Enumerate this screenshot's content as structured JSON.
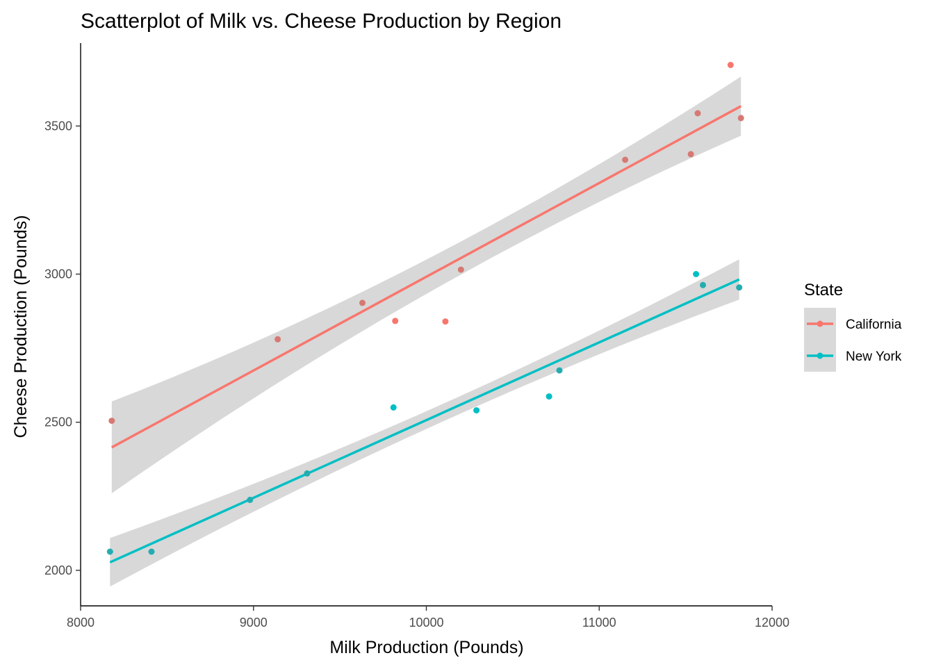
{
  "chart_data": {
    "type": "scatter",
    "title": "Scatterplot of Milk vs. Cheese Production by Region",
    "xlabel": "Milk Production (Pounds)",
    "ylabel": "Cheese Production (Pounds)",
    "xlim": [
      8000,
      12000
    ],
    "ylim": [
      1880,
      3780
    ],
    "x_ticks": [
      8000,
      9000,
      10000,
      11000,
      12000
    ],
    "y_ticks": [
      2000,
      2500,
      3000,
      3500
    ],
    "grid": false,
    "legend": {
      "title": "State",
      "position": "right"
    },
    "smooth": "linear fit with confidence band",
    "band_color": "#bebebe",
    "series": [
      {
        "name": "California",
        "color": "#F8766D",
        "points": [
          {
            "x": 8180,
            "y": 2505
          },
          {
            "x": 9140,
            "y": 2780
          },
          {
            "x": 9630,
            "y": 2903
          },
          {
            "x": 9820,
            "y": 2842
          },
          {
            "x": 10110,
            "y": 2840
          },
          {
            "x": 10200,
            "y": 3015
          },
          {
            "x": 11150,
            "y": 3386
          },
          {
            "x": 11530,
            "y": 3405
          },
          {
            "x": 11570,
            "y": 3543
          },
          {
            "x": 11760,
            "y": 3706
          },
          {
            "x": 11820,
            "y": 3527
          }
        ],
        "fit": {
          "x0": 8180,
          "y0": 2415,
          "x1": 11820,
          "y1": 3567
        },
        "band_halfwidth": {
          "start": 155,
          "mid": 58,
          "end": 100
        }
      },
      {
        "name": "New York",
        "color": "#00BFC4",
        "points": [
          {
            "x": 8170,
            "y": 2063
          },
          {
            "x": 8410,
            "y": 2063
          },
          {
            "x": 8980,
            "y": 2238
          },
          {
            "x": 9310,
            "y": 2327
          },
          {
            "x": 9810,
            "y": 2550
          },
          {
            "x": 10290,
            "y": 2540
          },
          {
            "x": 10710,
            "y": 2587
          },
          {
            "x": 10770,
            "y": 2675
          },
          {
            "x": 11560,
            "y": 3000
          },
          {
            "x": 11600,
            "y": 2963
          },
          {
            "x": 11810,
            "y": 2955
          }
        ],
        "fit": {
          "x0": 8170,
          "y0": 2027,
          "x1": 11810,
          "y1": 2982
        },
        "band_halfwidth": {
          "start": 82,
          "mid": 30,
          "end": 68
        }
      }
    ]
  }
}
